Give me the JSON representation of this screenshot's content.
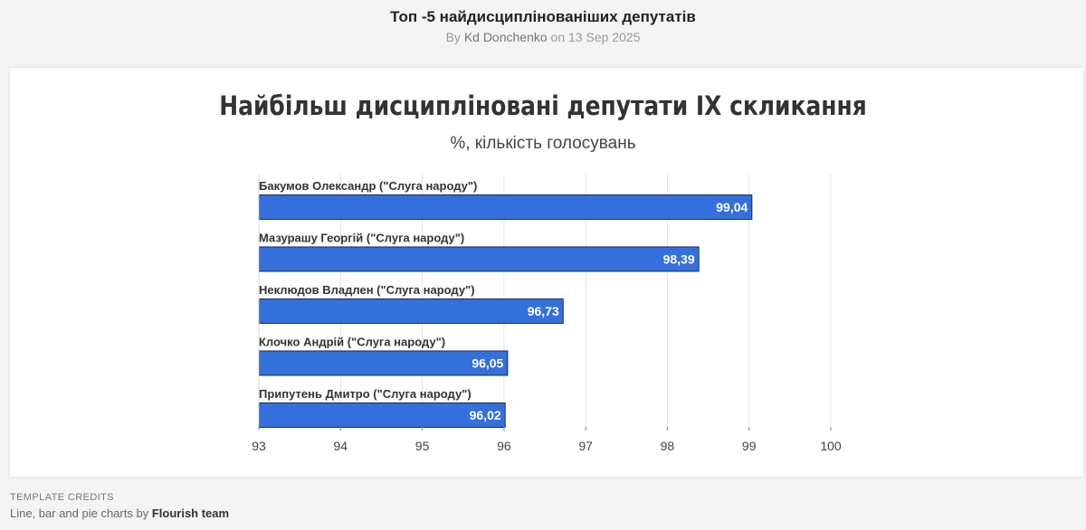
{
  "header": {
    "title": "Топ -5 найдисциплінованіших депутатів",
    "byline_prefix": "By",
    "author": "Kd Donchenko",
    "date_prefix": "on",
    "date": "13 Sep 2025"
  },
  "footer": {
    "credits_label": "TEMPLATE CREDITS",
    "credits_text": "Line, bar and pie charts by",
    "credits_team": "Flourish team"
  },
  "colors": {
    "bar": "#3470dc",
    "bar_border": "#1c2a4a"
  },
  "chart_data": {
    "type": "bar",
    "orientation": "horizontal",
    "title": "Найбільш дисципліновані депутати IX скликання",
    "subtitle": "%, кількість голосувань",
    "categories": [
      "Бакумов Олександр (\"Слуга народу\")",
      "Мазурашу Георгій (\"Слуга народу\")",
      "Неклюдов Владлен (\"Слуга народу\")",
      "Клочко Андрій (\"Слуга народу\")",
      "Припутень Дмитро (\"Слуга народу\")"
    ],
    "values": [
      99.04,
      98.39,
      96.73,
      96.05,
      96.02
    ],
    "value_labels": [
      "99,04",
      "98,39",
      "96,73",
      "96,05",
      "96,02"
    ],
    "xlim": [
      93,
      100
    ],
    "xticks": [
      93,
      94,
      95,
      96,
      97,
      98,
      99,
      100
    ],
    "grid": true
  }
}
